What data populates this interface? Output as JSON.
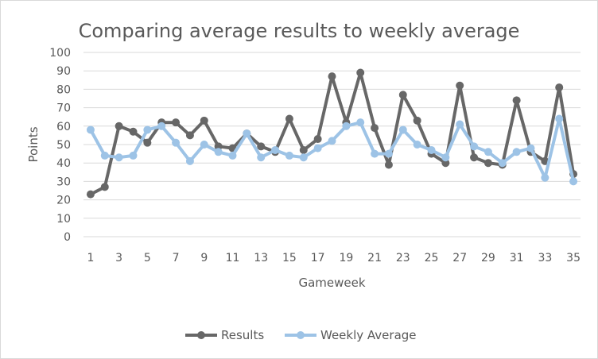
{
  "chart_data": {
    "type": "line",
    "title": "Comparing average results to weekly average",
    "xlabel": "Gameweek",
    "ylabel": "Points",
    "x": [
      1,
      2,
      3,
      4,
      5,
      6,
      7,
      8,
      9,
      10,
      11,
      12,
      13,
      14,
      15,
      16,
      17,
      18,
      19,
      20,
      21,
      22,
      23,
      24,
      25,
      26,
      27,
      28,
      29,
      30,
      31,
      32,
      33,
      34,
      35
    ],
    "x_tick_labels": [
      "1",
      "3",
      "5",
      "7",
      "9",
      "11",
      "13",
      "15",
      "17",
      "19",
      "21",
      "23",
      "25",
      "27",
      "29",
      "31",
      "33",
      "35"
    ],
    "y_tick_labels": [
      "0",
      "10",
      "20",
      "30",
      "40",
      "50",
      "60",
      "70",
      "80",
      "90",
      "100"
    ],
    "ylim": [
      0,
      100
    ],
    "grid": "horizontal",
    "legend_position": "bottom",
    "series": [
      {
        "name": "Results",
        "color": "#676767",
        "values": [
          23,
          27,
          60,
          57,
          51,
          62,
          62,
          55,
          63,
          49,
          48,
          56,
          49,
          46,
          64,
          47,
          53,
          87,
          62,
          89,
          59,
          39,
          77,
          63,
          45,
          40,
          82,
          43,
          40,
          39,
          74,
          46,
          41,
          81,
          34
        ]
      },
      {
        "name": "Weekly Average",
        "color": "#9dc3e6",
        "values": [
          58,
          44,
          43,
          44,
          58,
          60,
          51,
          41,
          50,
          46,
          44,
          56,
          43,
          47,
          44,
          43,
          48,
          52,
          60,
          62,
          45,
          45,
          58,
          50,
          47,
          43,
          61,
          49,
          46,
          40,
          46,
          48,
          32,
          64,
          30
        ]
      }
    ]
  }
}
